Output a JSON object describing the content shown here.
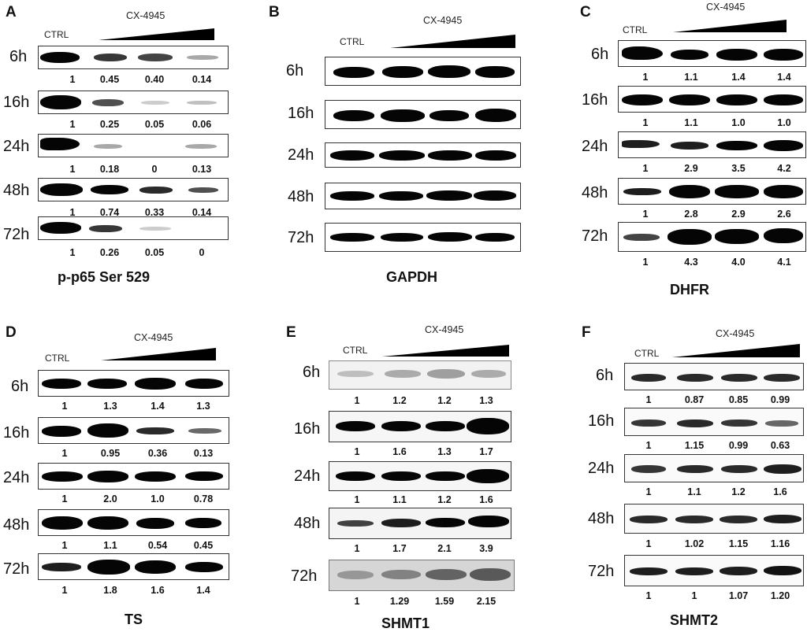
{
  "panels": [
    {
      "letter": "A",
      "drug": "CX-4945",
      "ctrl": "CTRL",
      "title": "p-p65 Ser 529",
      "rows": [
        {
          "time": "6h",
          "values": [
            "1",
            "0.45",
            "0.40",
            "0.14"
          ]
        },
        {
          "time": "16h",
          "values": [
            "1",
            "0.25",
            "0.05",
            "0.06"
          ]
        },
        {
          "time": "24h",
          "values": [
            "1",
            "0.18",
            "0",
            "0.13"
          ]
        },
        {
          "time": "48h",
          "values": [
            "1",
            "0.74",
            "0.33",
            "0.14"
          ]
        },
        {
          "time": "72h",
          "values": [
            "1",
            "0.26",
            "0.05",
            "0"
          ]
        }
      ]
    },
    {
      "letter": "B",
      "drug": "CX-4945",
      "ctrl": "CTRL",
      "title": "GAPDH",
      "rows": [
        {
          "time": "6h",
          "values": []
        },
        {
          "time": "16h",
          "values": []
        },
        {
          "time": "24h",
          "values": []
        },
        {
          "time": "48h",
          "values": []
        },
        {
          "time": "72h",
          "values": []
        }
      ]
    },
    {
      "letter": "C",
      "drug": "CX-4945",
      "ctrl": "CTRL",
      "title": "DHFR",
      "rows": [
        {
          "time": "6h",
          "values": [
            "1",
            "1.1",
            "1.4",
            "1.4"
          ]
        },
        {
          "time": "16h",
          "values": [
            "1",
            "1.1",
            "1.0",
            "1.0"
          ]
        },
        {
          "time": "24h",
          "values": [
            "1",
            "2.9",
            "3.5",
            "4.2"
          ]
        },
        {
          "time": "48h",
          "values": [
            "1",
            "2.8",
            "2.9",
            "2.6"
          ]
        },
        {
          "time": "72h",
          "values": [
            "1",
            "4.3",
            "4.0",
            "4.1"
          ]
        }
      ]
    },
    {
      "letter": "D",
      "drug": "CX-4945",
      "ctrl": "CTRL",
      "title": "TS",
      "rows": [
        {
          "time": "6h",
          "values": [
            "1",
            "1.3",
            "1.4",
            "1.3"
          ]
        },
        {
          "time": "16h",
          "values": [
            "1",
            "0.95",
            "0.36",
            "0.13"
          ]
        },
        {
          "time": "24h",
          "values": [
            "1",
            "2.0",
            "1.0",
            "0.78"
          ]
        },
        {
          "time": "48h",
          "values": [
            "1",
            "1.1",
            "0.54",
            "0.45"
          ]
        },
        {
          "time": "72h",
          "values": [
            "1",
            "1.8",
            "1.6",
            "1.4"
          ]
        }
      ]
    },
    {
      "letter": "E",
      "drug": "CX-4945",
      "ctrl": "CTRL",
      "title": "SHMT1",
      "rows": [
        {
          "time": "6h",
          "values": [
            "1",
            "1.2",
            "1.2",
            "1.3"
          ]
        },
        {
          "time": "16h",
          "values": [
            "1",
            "1.6",
            "1.3",
            "1.7"
          ]
        },
        {
          "time": "24h",
          "values": [
            "1",
            "1.1",
            "1.2",
            "1.6"
          ]
        },
        {
          "time": "48h",
          "values": [
            "1",
            "1.7",
            "2.1",
            "3.9"
          ]
        },
        {
          "time": "72h",
          "values": [
            "1",
            "1.29",
            "1.59",
            "2.15"
          ]
        }
      ]
    },
    {
      "letter": "F",
      "drug": "CX-4945",
      "ctrl": "CTRL",
      "title": "SHMT2",
      "rows": [
        {
          "time": "6h",
          "values": [
            "1",
            "0.87",
            "0.85",
            "0.99"
          ]
        },
        {
          "time": "16h",
          "values": [
            "1",
            "1.15",
            "0.99",
            "0.63"
          ]
        },
        {
          "time": "24h",
          "values": [
            "1",
            "1.1",
            "1.2",
            "1.6"
          ]
        },
        {
          "time": "48h",
          "values": [
            "1",
            "1.02",
            "1.15",
            "1.16"
          ]
        },
        {
          "time": "72h",
          "values": [
            "1",
            "1",
            "1.07",
            "1.20"
          ]
        }
      ]
    }
  ]
}
